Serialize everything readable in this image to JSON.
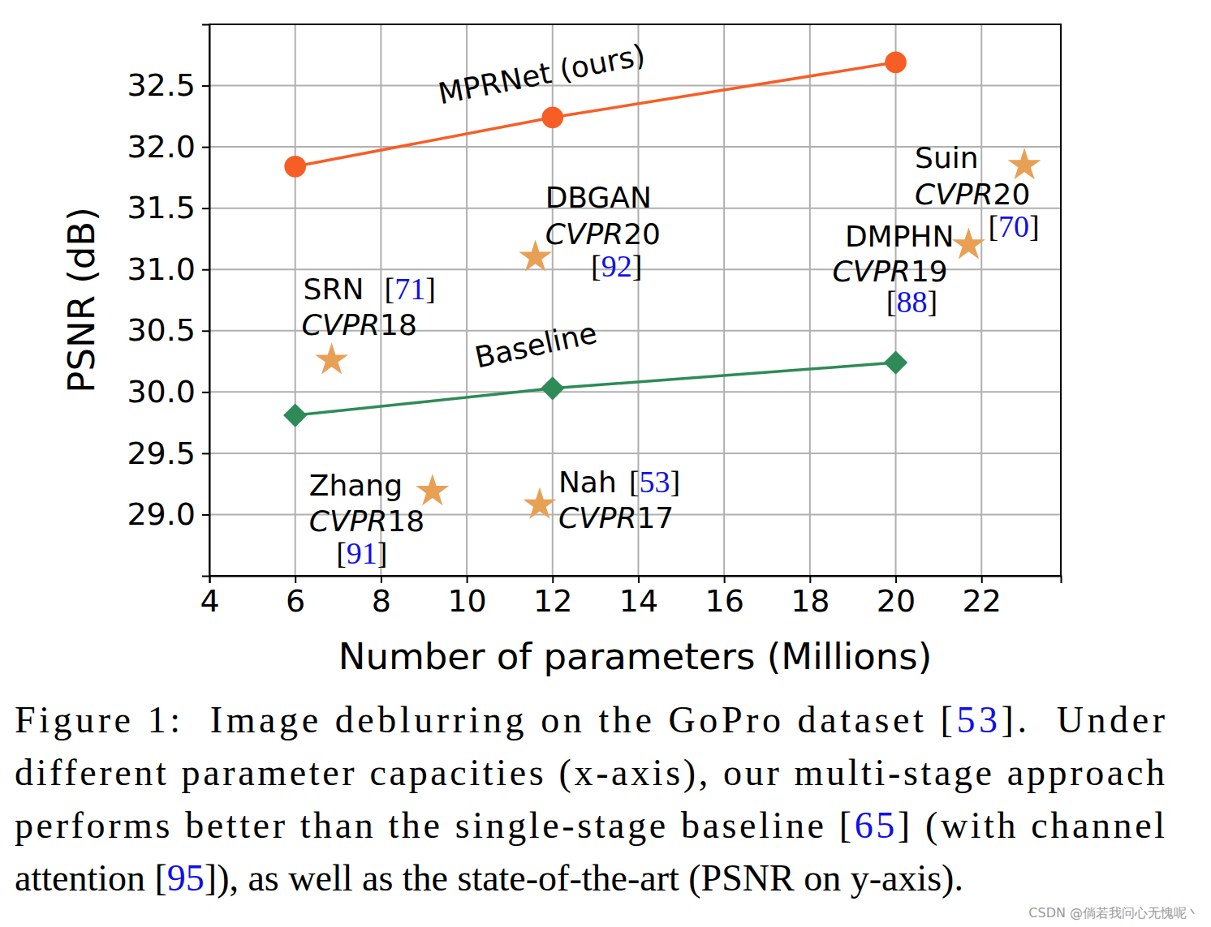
{
  "chart_data": {
    "type": "line",
    "x_label": "Number of parameters (Millions)",
    "y_label": "PSNR (dB)",
    "xlim": [
      4,
      23.85
    ],
    "ylim": [
      28.5,
      33.0
    ],
    "xticks": [
      4,
      6,
      8,
      10,
      12,
      14,
      16,
      18,
      20,
      22
    ],
    "yticks": [
      {
        "value": 29.0,
        "label": "29.0"
      },
      29.5,
      {
        "value": 30.0,
        "label": "30.0"
      },
      30.5,
      {
        "value": 31.0,
        "label": "31.0"
      },
      31.5,
      {
        "value": 32.0,
        "label": "32.0"
      },
      32.5
    ],
    "grid": true,
    "series": [
      {
        "name": "MPRNet (ours)",
        "color": "#f65e26",
        "marker": "circle",
        "line_style": "solid",
        "x": [
          6,
          12,
          20
        ],
        "values": [
          31.84,
          32.24,
          32.69
        ]
      },
      {
        "name": "Baseline",
        "color": "#2e8b57",
        "marker": "diamond",
        "line_style": "solid",
        "x": [
          6,
          12,
          20
        ],
        "values": [
          29.81,
          30.03,
          30.24
        ]
      }
    ],
    "points": {
      "color": "#e8a055",
      "marker": "star",
      "items": [
        {
          "name": "SRN",
          "venue": "CVPR18",
          "ref": "[71]",
          "x": 6.85,
          "y": 30.26
        },
        {
          "name": "DBGAN",
          "venue": "CVPR20",
          "ref": "[92]",
          "x": 11.6,
          "y": 31.1
        },
        {
          "name": "DMPHN",
          "venue": "CVPR19",
          "ref": "[88]",
          "x": 21.7,
          "y": 31.2
        },
        {
          "name": "Suin",
          "venue": "CVPR20",
          "ref": "[70]",
          "x": 23.0,
          "y": 31.85
        },
        {
          "name": "Zhang",
          "venue": "CVPR18",
          "ref": "[91]",
          "x": 9.2,
          "y": 29.19
        },
        {
          "name": "Nah",
          "venue": "CVPR17",
          "ref": "[53]",
          "x": 11.7,
          "y": 29.08
        }
      ]
    },
    "caption": [
      "Figure 1:  Image deblurring on the GoPro dataset [53].  Under",
      "different parameter capacities (x-axis), our multi-stage approach",
      "performs better than the single-stage baseline [65] (with channel",
      "attention [95]), as well as the state-of-the-art (PSNR on y-axis)."
    ],
    "watermark": "CSDN @倘若我问心无愧呢丶"
  }
}
